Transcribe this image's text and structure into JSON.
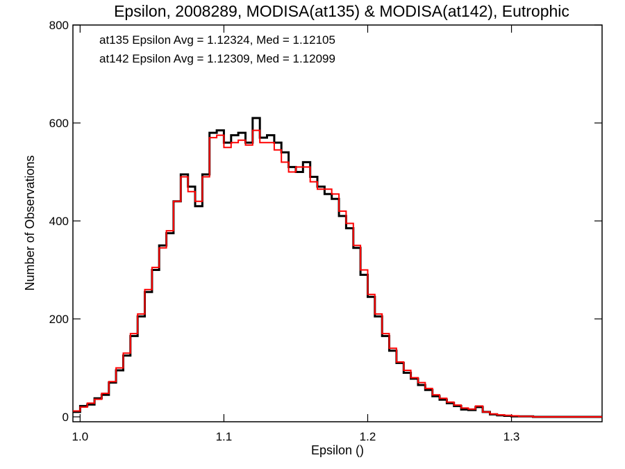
{
  "chart_data": {
    "type": "line",
    "step": true,
    "title": "Epsilon, 2008289, MODISA(at135) & MODISA(at142), Eutrophic",
    "xlabel": "Epsilon ()",
    "ylabel": "Number of Observations",
    "xlim": [
      0.995,
      1.363
    ],
    "ylim": [
      -10,
      800
    ],
    "x_ticks": [
      1.0,
      1.1,
      1.2,
      1.3
    ],
    "x_tick_labels": [
      "1.0",
      "1.1",
      "1.2",
      "1.3"
    ],
    "y_ticks": [
      0,
      200,
      400,
      600,
      800
    ],
    "y_tick_labels": [
      "0",
      "200",
      "400",
      "600",
      "800"
    ],
    "annotations": [
      {
        "text": "at135 Epsilon Avg = 1.12324, Med = 1.12105",
        "color": "#000000"
      },
      {
        "text": "at142 Epsilon Avg = 1.12309, Med = 1.12099",
        "color": "#ff0000"
      }
    ],
    "x": [
      0.995,
      1.0,
      1.005,
      1.01,
      1.015,
      1.02,
      1.025,
      1.03,
      1.035,
      1.04,
      1.045,
      1.05,
      1.055,
      1.06,
      1.065,
      1.07,
      1.075,
      1.08,
      1.085,
      1.09,
      1.095,
      1.1,
      1.105,
      1.11,
      1.115,
      1.12,
      1.125,
      1.13,
      1.135,
      1.14,
      1.145,
      1.15,
      1.155,
      1.16,
      1.165,
      1.17,
      1.175,
      1.18,
      1.185,
      1.19,
      1.195,
      1.2,
      1.205,
      1.21,
      1.215,
      1.22,
      1.225,
      1.23,
      1.235,
      1.24,
      1.245,
      1.25,
      1.255,
      1.26,
      1.265,
      1.27,
      1.275,
      1.28,
      1.285,
      1.29,
      1.295,
      1.3,
      1.305,
      1.31,
      1.315,
      1.32,
      1.325,
      1.33,
      1.335,
      1.34,
      1.345,
      1.35,
      1.355,
      1.36
    ],
    "series": [
      {
        "color": "#000000",
        "values": [
          10,
          22,
          25,
          38,
          45,
          70,
          95,
          125,
          165,
          205,
          255,
          300,
          350,
          375,
          440,
          495,
          470,
          430,
          495,
          580,
          585,
          560,
          575,
          580,
          560,
          610,
          570,
          575,
          560,
          540,
          510,
          500,
          520,
          490,
          470,
          455,
          445,
          410,
          385,
          345,
          290,
          245,
          205,
          165,
          135,
          110,
          90,
          78,
          65,
          55,
          42,
          35,
          28,
          22,
          15,
          14,
          20,
          10,
          5,
          3,
          2,
          1,
          1,
          1,
          0,
          0,
          0,
          0,
          0,
          0,
          0,
          0,
          0,
          0
        ]
      },
      {
        "color": "#ff0000",
        "values": [
          12,
          20,
          28,
          36,
          48,
          72,
          100,
          130,
          170,
          210,
          260,
          305,
          345,
          380,
          440,
          490,
          460,
          440,
          490,
          570,
          575,
          550,
          560,
          565,
          555,
          585,
          560,
          560,
          545,
          520,
          500,
          510,
          510,
          480,
          465,
          465,
          455,
          420,
          395,
          350,
          300,
          250,
          210,
          170,
          140,
          112,
          95,
          80,
          70,
          58,
          45,
          38,
          30,
          24,
          18,
          16,
          22,
          10,
          6,
          4,
          3,
          2,
          1,
          1,
          0,
          0,
          0,
          0,
          0,
          0,
          0,
          0,
          0,
          0
        ]
      }
    ]
  }
}
